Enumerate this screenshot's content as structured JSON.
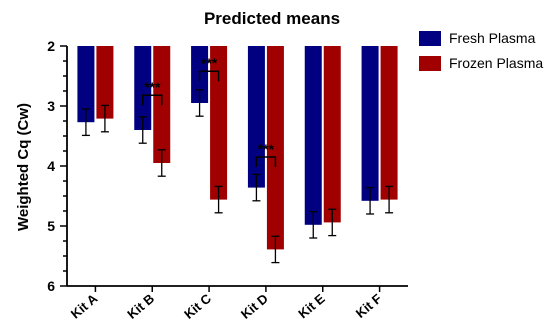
{
  "chart_data": {
    "type": "bar",
    "title": "Predicted means",
    "xlabel": "",
    "ylabel": "Weighted Cq (Cw)",
    "y_axis_inverted": true,
    "ylim": [
      2,
      6
    ],
    "yticks": [
      "2",
      "3",
      "4",
      "5",
      "6"
    ],
    "categories": [
      "Kit A",
      "Kit B",
      "Kit C",
      "Kit D",
      "Kit E",
      "Kit F"
    ],
    "series": [
      {
        "name": "Fresh Plasma",
        "color": "#000080",
        "values": [
          3.27,
          3.4,
          2.95,
          4.36,
          4.98,
          4.58
        ],
        "error": [
          0.22,
          0.22,
          0.22,
          0.22,
          0.22,
          0.22
        ]
      },
      {
        "name": "Frozen Plasma",
        "color": "#A00000",
        "values": [
          3.21,
          3.95,
          4.56,
          5.39,
          4.94,
          4.56
        ],
        "error": [
          0.22,
          0.22,
          0.22,
          0.22,
          0.22,
          0.22
        ]
      }
    ],
    "significance": [
      {
        "category": "Kit B",
        "label": "***",
        "y": 2.82
      },
      {
        "category": "Kit C",
        "label": "***",
        "y": 2.42
      },
      {
        "category": "Kit D",
        "label": "***",
        "y": 3.85
      }
    ],
    "legend_position": "top-right",
    "grid": false
  }
}
